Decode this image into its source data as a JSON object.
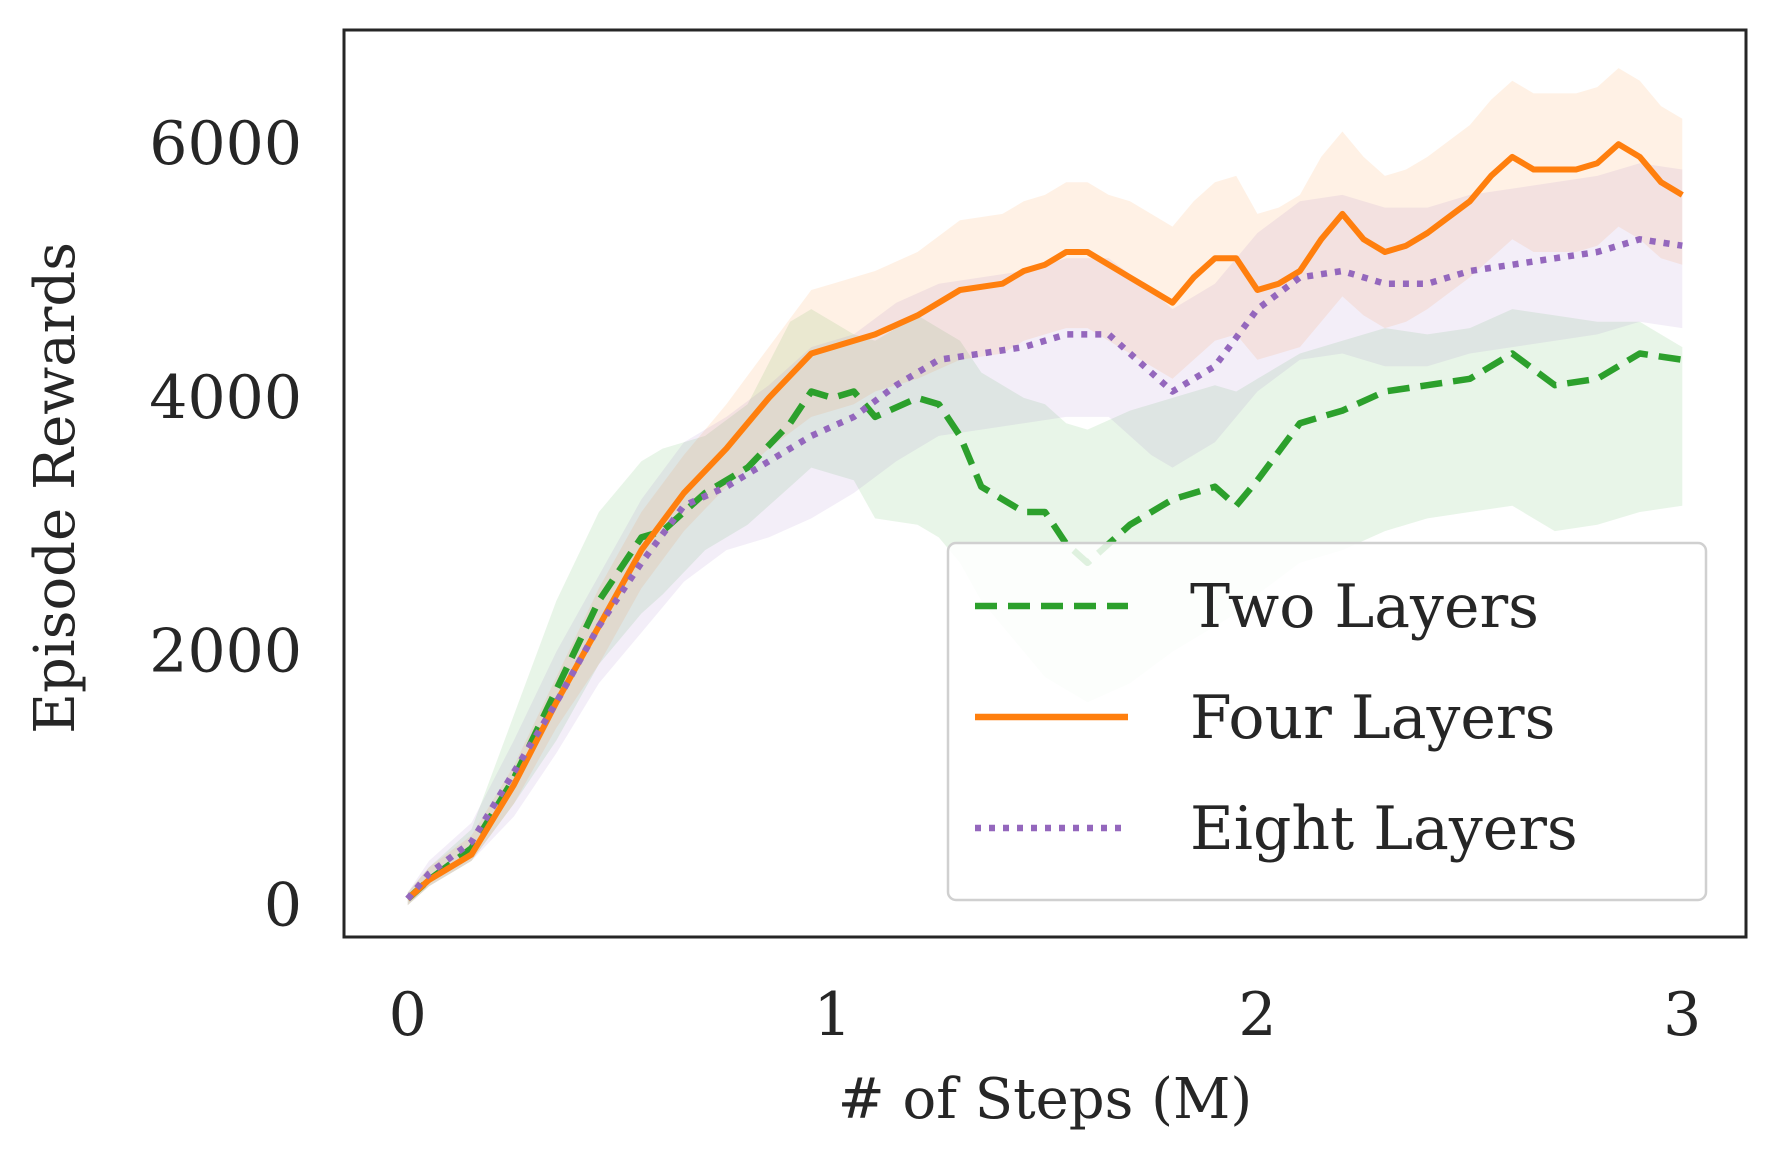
{
  "chart_data": {
    "type": "line",
    "title": "",
    "xlabel": "# of Steps (M)",
    "ylabel": "Episode Rewards",
    "xlim": [
      -0.15,
      3.15
    ],
    "ylim": [
      -250,
      6900
    ],
    "xticks": [
      0,
      1,
      2,
      3
    ],
    "xtick_labels": [
      "0",
      "1",
      "2",
      "3"
    ],
    "yticks": [
      0,
      2000,
      4000,
      6000
    ],
    "ytick_labels": [
      "0",
      "2000",
      "4000",
      "6000"
    ],
    "grid": false,
    "legend_position": "lower-right",
    "series": [
      {
        "name": "Two Layers",
        "color": "#2ca02c",
        "style": "dashed",
        "x": [
          0,
          0.05,
          0.15,
          0.25,
          0.35,
          0.45,
          0.55,
          0.6,
          0.7,
          0.8,
          0.9,
          0.95,
          1.0,
          1.05,
          1.1,
          1.2,
          1.25,
          1.3,
          1.35,
          1.45,
          1.5,
          1.55,
          1.6,
          1.7,
          1.8,
          1.9,
          1.95,
          2.0,
          2.1,
          2.2,
          2.3,
          2.4,
          2.5,
          2.6,
          2.7,
          2.8,
          2.9,
          3.0
        ],
        "y": [
          50,
          200,
          450,
          1000,
          1700,
          2400,
          2900,
          2950,
          3250,
          3450,
          3800,
          4050,
          4000,
          4050,
          3850,
          4000,
          3950,
          3700,
          3300,
          3100,
          3100,
          2850,
          2700,
          3000,
          3200,
          3300,
          3150,
          3350,
          3800,
          3900,
          4050,
          4100,
          4150,
          4350,
          4100,
          4150,
          4350,
          4300
        ],
        "lower": [
          0,
          150,
          350,
          800,
          1300,
          1900,
          2300,
          2450,
          2800,
          3000,
          3300,
          3450,
          3400,
          3350,
          3050,
          3000,
          2900,
          2700,
          2400,
          2000,
          1800,
          1700,
          1600,
          1750,
          2000,
          2200,
          2300,
          2450,
          2700,
          2800,
          2950,
          3050,
          3100,
          3150,
          2950,
          3000,
          3100,
          3150
        ],
        "upper": [
          100,
          300,
          600,
          1500,
          2400,
          3100,
          3500,
          3600,
          3700,
          3950,
          4600,
          4700,
          4600,
          4500,
          4450,
          4650,
          4550,
          4450,
          4200,
          4000,
          3950,
          3800,
          3750,
          3900,
          4000,
          4100,
          4050,
          4150,
          4350,
          4450,
          4550,
          4500,
          4550,
          4700,
          4650,
          4600,
          4600,
          4400
        ]
      },
      {
        "name": "Four Layers",
        "color": "#ff7f0e",
        "style": "solid",
        "x": [
          0,
          0.05,
          0.15,
          0.25,
          0.35,
          0.45,
          0.55,
          0.65,
          0.75,
          0.85,
          0.95,
          1.0,
          1.05,
          1.1,
          1.2,
          1.3,
          1.4,
          1.45,
          1.5,
          1.55,
          1.6,
          1.65,
          1.7,
          1.8,
          1.85,
          1.9,
          1.95,
          2.0,
          2.05,
          2.1,
          2.15,
          2.2,
          2.25,
          2.3,
          2.35,
          2.4,
          2.5,
          2.55,
          2.6,
          2.65,
          2.7,
          2.75,
          2.8,
          2.85,
          2.9,
          2.95,
          3.0
        ],
        "y": [
          50,
          200,
          400,
          950,
          1600,
          2200,
          2800,
          3250,
          3600,
          4000,
          4350,
          4400,
          4450,
          4500,
          4650,
          4850,
          4900,
          5000,
          5050,
          5150,
          5150,
          5050,
          4950,
          4750,
          4950,
          5100,
          5100,
          4850,
          4900,
          5000,
          5250,
          5450,
          5250,
          5150,
          5200,
          5300,
          5550,
          5750,
          5900,
          5800,
          5800,
          5800,
          5850,
          6000,
          5900,
          5700,
          5600
        ],
        "lower": [
          0,
          150,
          350,
          800,
          1400,
          1900,
          2500,
          2950,
          3300,
          3600,
          3850,
          3900,
          3950,
          4050,
          4150,
          4300,
          4350,
          4450,
          4500,
          4550,
          4550,
          4450,
          4350,
          4150,
          4300,
          4450,
          4500,
          4300,
          4350,
          4400,
          4600,
          4800,
          4650,
          4550,
          4600,
          4700,
          4950,
          5100,
          5250,
          5150,
          5150,
          5150,
          5200,
          5350,
          5250,
          5100,
          5050
        ],
        "upper": [
          100,
          300,
          550,
          1100,
          1800,
          2500,
          3100,
          3550,
          3950,
          4400,
          4850,
          4900,
          4950,
          5000,
          5150,
          5400,
          5450,
          5550,
          5600,
          5700,
          5700,
          5600,
          5550,
          5350,
          5550,
          5700,
          5750,
          5450,
          5500,
          5600,
          5900,
          6100,
          5900,
          5750,
          5800,
          5900,
          6150,
          6350,
          6500,
          6400,
          6400,
          6400,
          6450,
          6600,
          6500,
          6300,
          6200
        ]
      },
      {
        "name": "Eight Layers",
        "color": "#9467bd",
        "style": "dotted",
        "x": [
          0,
          0.05,
          0.15,
          0.25,
          0.35,
          0.45,
          0.55,
          0.65,
          0.75,
          0.85,
          0.95,
          1.05,
          1.15,
          1.25,
          1.35,
          1.45,
          1.55,
          1.65,
          1.75,
          1.8,
          1.9,
          2.0,
          2.1,
          2.2,
          2.3,
          2.4,
          2.5,
          2.6,
          2.7,
          2.8,
          2.9,
          3.0
        ],
        "y": [
          50,
          250,
          500,
          1050,
          1600,
          2200,
          2700,
          3150,
          3300,
          3500,
          3700,
          3850,
          4100,
          4300,
          4350,
          4400,
          4500,
          4500,
          4200,
          4050,
          4250,
          4700,
          4950,
          5000,
          4900,
          4900,
          5000,
          5050,
          5100,
          5150,
          5250,
          5200
        ],
        "lower": [
          0,
          150,
          350,
          700,
          1200,
          1750,
          2150,
          2550,
          2800,
          2900,
          3050,
          3250,
          3500,
          3700,
          3750,
          3800,
          3850,
          3850,
          3550,
          3450,
          3650,
          4050,
          4300,
          4350,
          4250,
          4250,
          4350,
          4400,
          4450,
          4500,
          4600,
          4550
        ],
        "upper": [
          100,
          350,
          650,
          1300,
          2000,
          2600,
          3200,
          3650,
          3850,
          4100,
          4400,
          4500,
          4750,
          4900,
          4950,
          5000,
          5100,
          5100,
          4850,
          4700,
          4900,
          5300,
          5550,
          5600,
          5500,
          5500,
          5600,
          5650,
          5700,
          5750,
          5850,
          5800
        ]
      }
    ]
  }
}
